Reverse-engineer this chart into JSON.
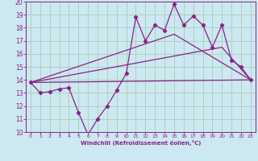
{
  "xlabel": "Windchill (Refroidissement éolien,°C)",
  "background_color": "#cce8f0",
  "grid_color": "#aaccbb",
  "line_color": "#882288",
  "xlim": [
    -0.5,
    23.5
  ],
  "ylim": [
    10,
    20
  ],
  "yticks": [
    10,
    11,
    12,
    13,
    14,
    15,
    16,
    17,
    18,
    19,
    20
  ],
  "xticks": [
    0,
    1,
    2,
    3,
    4,
    5,
    6,
    7,
    8,
    9,
    10,
    11,
    12,
    13,
    14,
    15,
    16,
    17,
    18,
    19,
    20,
    21,
    22,
    23
  ],
  "line1_x": [
    0,
    1,
    2,
    3,
    4,
    5,
    6,
    7,
    8,
    9,
    10,
    11,
    12,
    13,
    14,
    15,
    16,
    17,
    18,
    19,
    20,
    21,
    22,
    23
  ],
  "line1_y": [
    13.8,
    13.0,
    13.1,
    13.3,
    13.4,
    11.5,
    9.8,
    11.0,
    12.0,
    13.2,
    14.5,
    18.8,
    17.0,
    18.2,
    17.8,
    19.8,
    18.2,
    18.9,
    18.2,
    16.5,
    18.2,
    15.5,
    15.0,
    14.0
  ],
  "line2_x": [
    0,
    23
  ],
  "line2_y": [
    13.8,
    14.0
  ],
  "line3_x": [
    0,
    15,
    23
  ],
  "line3_y": [
    13.8,
    17.5,
    14.0
  ],
  "line4_x": [
    0,
    20,
    23
  ],
  "line4_y": [
    13.8,
    16.5,
    14.0
  ]
}
